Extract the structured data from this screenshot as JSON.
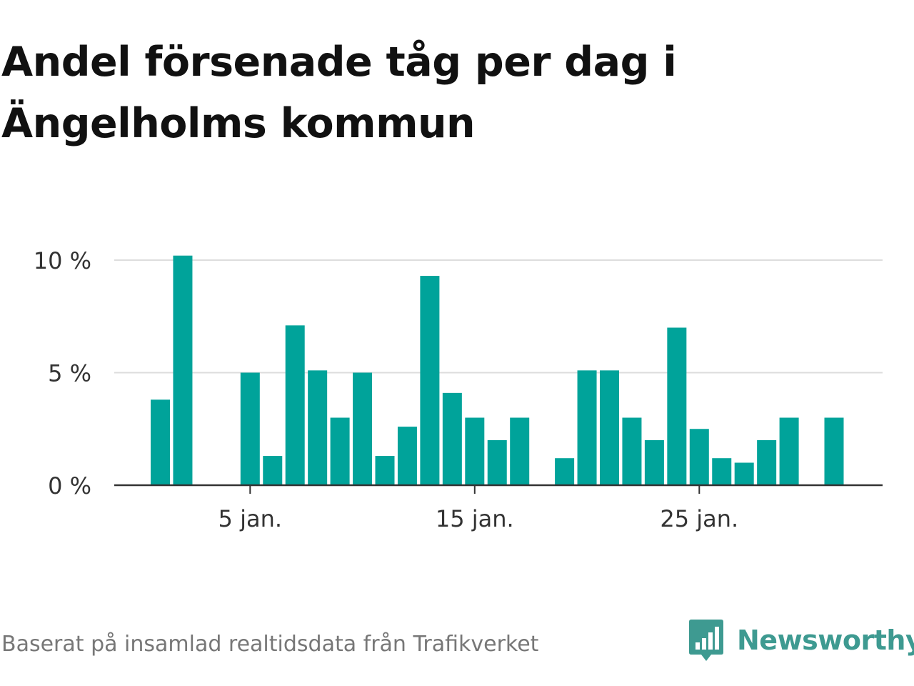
{
  "title_lines": [
    "Andel försenade tåg per dag i",
    "Ängelholms kommun"
  ],
  "source": "Baserat på insamlad realtidsdata från Trafikverket",
  "brand": {
    "name": "Newsworthy",
    "icon": "bar-chart-speech-bubble-icon",
    "color": "#3e9a91"
  },
  "colors": {
    "bar": "#00a39a",
    "grid": "#dddddd",
    "axis": "#333333"
  },
  "chart_data": {
    "type": "bar",
    "title": "Andel försenade tåg per dag i Ängelholms kommun",
    "x": [
      "1 jan.",
      "2 jan.",
      "3 jan.",
      "4 jan.",
      "5 jan.",
      "6 jan.",
      "7 jan.",
      "8 jan.",
      "9 jan.",
      "10 jan.",
      "11 jan.",
      "12 jan.",
      "13 jan.",
      "14 jan.",
      "15 jan.",
      "16 jan.",
      "17 jan.",
      "18 jan.",
      "19 jan.",
      "20 jan.",
      "21 jan.",
      "22 jan.",
      "23 jan.",
      "24 jan.",
      "25 jan.",
      "26 jan.",
      "27 jan.",
      "28 jan.",
      "29 jan.",
      "30 jan.",
      "31 jan."
    ],
    "values": [
      3.8,
      10.2,
      null,
      null,
      5.0,
      1.3,
      7.1,
      5.1,
      3.0,
      5.0,
      1.3,
      2.6,
      9.3,
      4.1,
      3.0,
      2.0,
      3.0,
      null,
      1.2,
      5.1,
      5.1,
      3.0,
      2.0,
      7.0,
      2.5,
      1.2,
      1.0,
      2.0,
      3.0,
      null,
      3.0
    ],
    "xticks": [
      {
        "x": "5 jan.",
        "label": "5 jan."
      },
      {
        "x": "15 jan.",
        "label": "15 jan."
      },
      {
        "x": "25 jan.",
        "label": "25 jan."
      }
    ],
    "yticks": [
      {
        "value": 0,
        "label": "0 %"
      },
      {
        "value": 5,
        "label": "5 %"
      },
      {
        "value": 10,
        "label": "10 %"
      }
    ],
    "ylim": [
      0,
      10
    ],
    "xlabel": "",
    "ylabel": "",
    "grid": true,
    "legend": "none"
  }
}
